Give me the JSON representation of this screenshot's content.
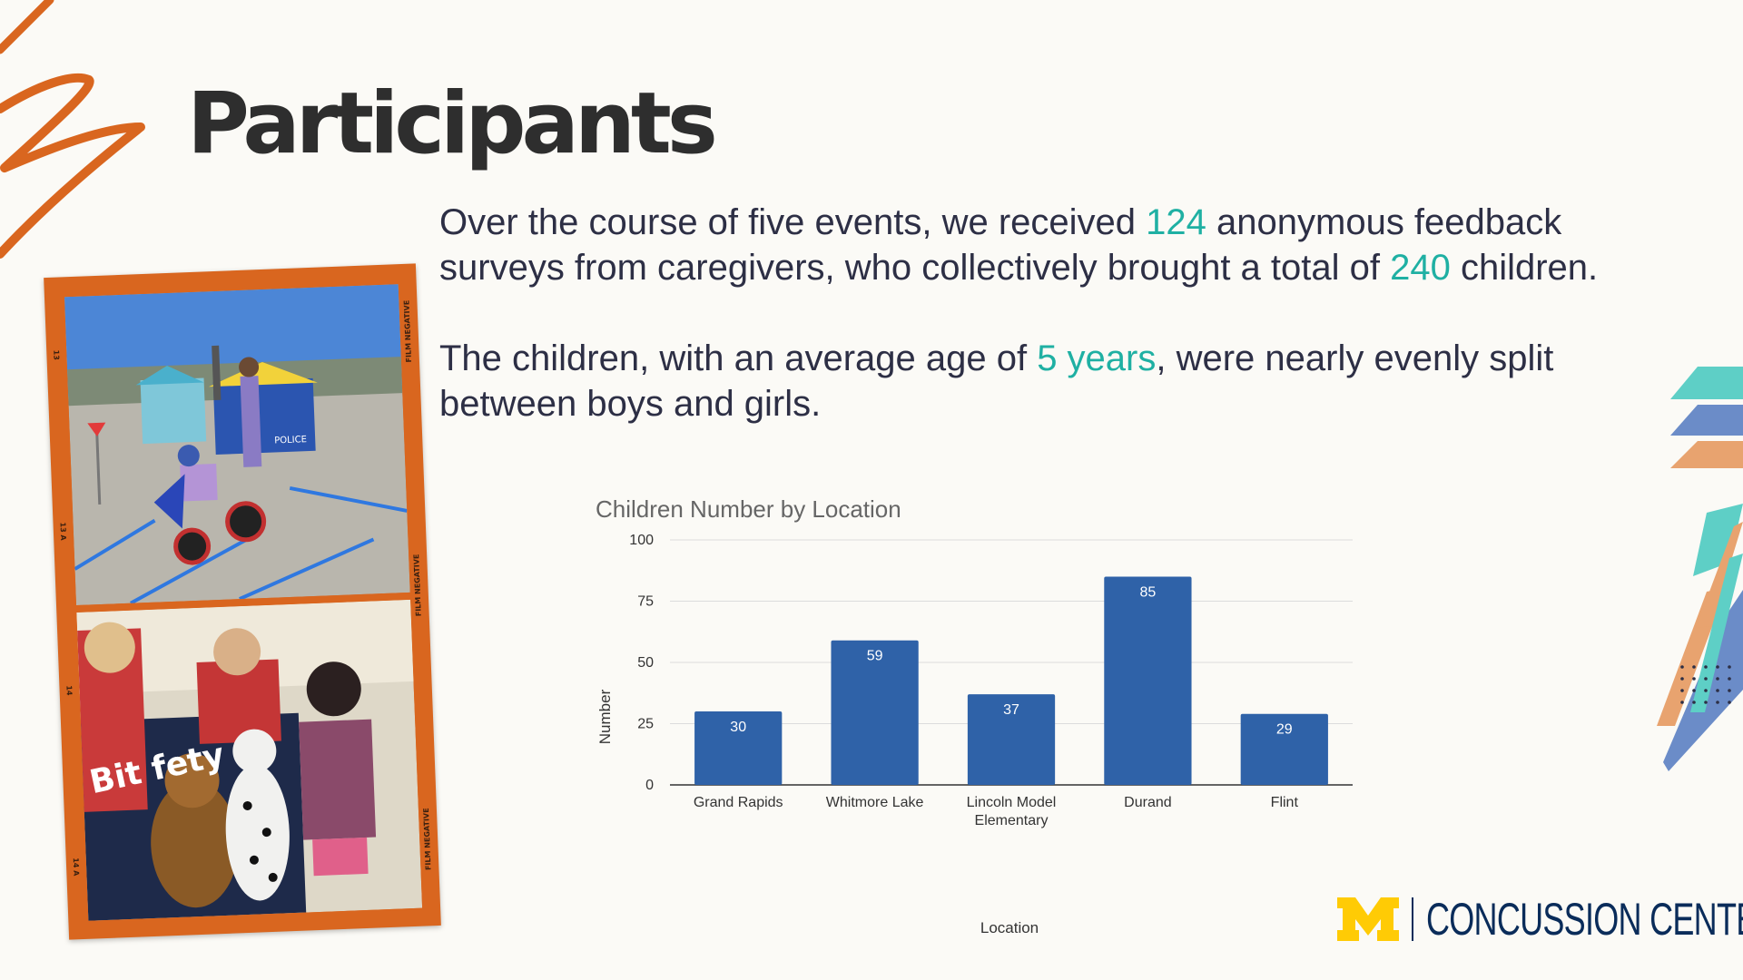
{
  "slide": {
    "title": "Participants",
    "para1": {
      "t1": "Over the course of five events, we received ",
      "n1": "124",
      "t2": " anonymous feedback surveys from caregivers, who collectively brought a total of ",
      "n2": "240",
      "t3": " children."
    },
    "para2": {
      "t1": "The children, with an average age of ",
      "n1": "5 years",
      "t2": ", were nearly evenly split between boys and girls."
    }
  },
  "photos": {
    "top_image_label": "Child on tricycle at outdoor safety event",
    "bottom_image_label": "Volunteers with child and stuffed dogs at table",
    "film_labels": [
      "FILM NEGATIVE",
      "FILM NEGATIVE",
      "FILM NEGATIVE"
    ],
    "frame_numbers": [
      "13",
      "13 A",
      "14",
      "14 A"
    ],
    "signs": {
      "police": "POLICE",
      "banner_fragment": "Bit fety"
    }
  },
  "logo": {
    "mark": "M",
    "text": "CONCUSSION CENTER",
    "colors": {
      "maize": "#ffcb05",
      "blue": "#0a2c5a"
    }
  },
  "colors": {
    "accent_teal": "#1fb0a3",
    "accent_orange": "#d9661f",
    "bar_blue": "#2f62a8",
    "text_dark": "#2d2f45"
  },
  "chart_data": {
    "type": "bar",
    "title": "Children Number by Location",
    "xlabel": "Location",
    "ylabel": "Number",
    "categories": [
      [
        "Grand Rapids"
      ],
      [
        "Whitmore Lake"
      ],
      [
        "Lincoln Model",
        "Elementary"
      ],
      [
        "Durand"
      ],
      [
        "Flint"
      ]
    ],
    "values": [
      30,
      59,
      37,
      85,
      29
    ],
    "ylim": [
      0,
      100
    ],
    "yticks": [
      0,
      25,
      50,
      75,
      100
    ],
    "grid": true,
    "data_labels": true
  }
}
